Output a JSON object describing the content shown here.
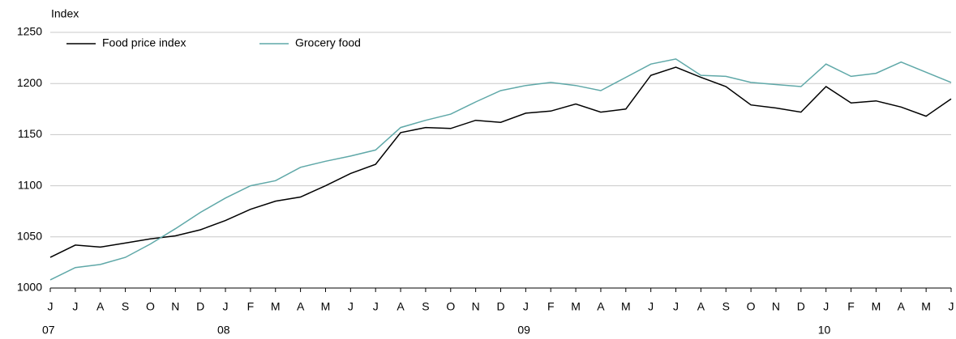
{
  "chart_data": {
    "type": "line",
    "y_label": "Index",
    "categories": [
      "J",
      "J",
      "A",
      "S",
      "O",
      "N",
      "D",
      "J",
      "F",
      "M",
      "A",
      "M",
      "J",
      "J",
      "A",
      "S",
      "O",
      "N",
      "D",
      "J",
      "F",
      "M",
      "A",
      "M",
      "J",
      "J",
      "A",
      "S",
      "O",
      "N",
      "D",
      "J",
      "F",
      "M",
      "A",
      "M",
      "J"
    ],
    "category_years": [
      "07",
      null,
      null,
      null,
      null,
      null,
      null,
      "08",
      null,
      null,
      null,
      null,
      null,
      null,
      null,
      null,
      null,
      null,
      null,
      "09",
      null,
      null,
      null,
      null,
      null,
      null,
      null,
      null,
      null,
      null,
      null,
      "10",
      null,
      null,
      null,
      null,
      null
    ],
    "series": [
      {
        "name": "Food price index",
        "color": "#000000",
        "values": [
          1030,
          1042,
          1040,
          1044,
          1048,
          1051,
          1057,
          1066,
          1077,
          1085,
          1089,
          1100,
          1112,
          1121,
          1152,
          1157,
          1156,
          1164,
          1162,
          1171,
          1173,
          1180,
          1172,
          1175,
          1208,
          1216,
          1206,
          1197,
          1179,
          1176,
          1172,
          1197,
          1181,
          1183,
          1177,
          1168,
          1185
        ]
      },
      {
        "name": "Grocery food",
        "color": "#5fa8a8",
        "values": [
          1008,
          1020,
          1023,
          1030,
          1043,
          1058,
          1074,
          1088,
          1100,
          1105,
          1118,
          1124,
          1129,
          1135,
          1157,
          1164,
          1170,
          1182,
          1193,
          1198,
          1201,
          1198,
          1193,
          1206,
          1219,
          1224,
          1208,
          1207,
          1201,
          1199,
          1197,
          1219,
          1207,
          1210,
          1221,
          1211,
          1201
        ]
      }
    ],
    "ylim": [
      1000,
      1250
    ],
    "yticks": [
      1000,
      1050,
      1100,
      1150,
      1200,
      1250
    ],
    "grid": true
  }
}
